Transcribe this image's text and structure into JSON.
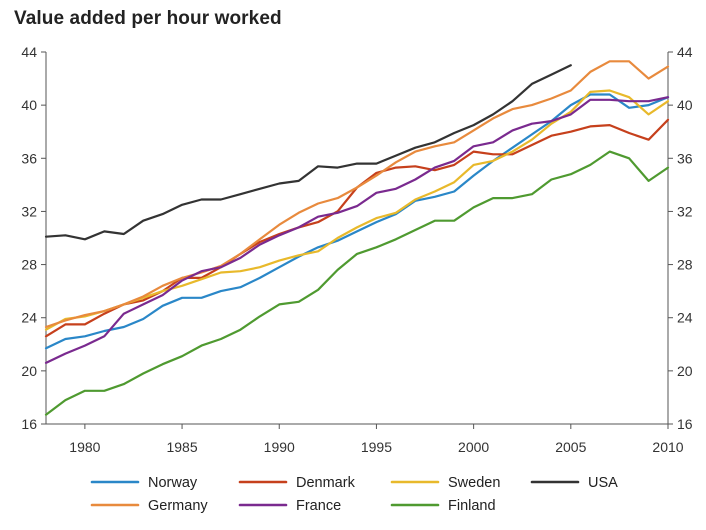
{
  "chart_data": {
    "type": "line",
    "title": "Value added per hour worked",
    "xlabel": "",
    "ylabel": "",
    "xlim": [
      1978,
      2010
    ],
    "ylim": [
      16,
      44
    ],
    "x_ticks": [
      1980,
      1985,
      1990,
      1995,
      2000,
      2005,
      2010
    ],
    "y_ticks": [
      16,
      20,
      24,
      28,
      32,
      36,
      40,
      44
    ],
    "grid": false,
    "legend_placement": "bottom",
    "series": [
      {
        "name": "Norway",
        "color": "#2a87c8",
        "legend_row": 0,
        "legend_col": 0,
        "x": [
          1978,
          1979,
          1980,
          1981,
          1982,
          1983,
          1984,
          1985,
          1986,
          1987,
          1988,
          1989,
          1990,
          1991,
          1992,
          1993,
          1994,
          1995,
          1996,
          1997,
          1998,
          1999,
          2000,
          2001,
          2002,
          2003,
          2004,
          2005,
          2006,
          2007,
          2008,
          2009,
          2010
        ],
        "values": [
          21.7,
          22.4,
          22.6,
          23.0,
          23.3,
          23.9,
          24.9,
          25.5,
          25.5,
          26.0,
          26.3,
          27.0,
          27.8,
          28.6,
          29.3,
          29.8,
          30.5,
          31.2,
          31.8,
          32.8,
          33.1,
          33.5,
          34.7,
          35.8,
          36.8,
          37.8,
          38.8,
          40.0,
          40.8,
          40.8,
          39.8,
          40.0,
          40.6
        ]
      },
      {
        "name": "Denmark",
        "color": "#c6401c",
        "legend_row": 0,
        "legend_col": 1,
        "x": [
          1978,
          1979,
          1980,
          1981,
          1982,
          1983,
          1984,
          1985,
          1986,
          1987,
          1988,
          1989,
          1990,
          1991,
          1992,
          1993,
          1994,
          1995,
          1996,
          1997,
          1998,
          1999,
          2000,
          2001,
          2002,
          2003,
          2004,
          2005,
          2006,
          2007,
          2008,
          2009,
          2010
        ],
        "values": [
          22.6,
          23.5,
          23.5,
          24.3,
          25.0,
          25.3,
          26.0,
          27.0,
          27.0,
          27.8,
          28.8,
          29.7,
          30.3,
          30.8,
          31.2,
          32.0,
          33.8,
          34.9,
          35.3,
          35.4,
          35.1,
          35.5,
          36.5,
          36.3,
          36.3,
          37.0,
          37.7,
          38.0,
          38.4,
          38.5,
          37.9,
          37.4,
          38.9
        ]
      },
      {
        "name": "Sweden",
        "color": "#e8b92b",
        "legend_row": 0,
        "legend_col": 2,
        "x": [
          1978,
          1979,
          1980,
          1981,
          1982,
          1983,
          1984,
          1985,
          1986,
          1987,
          1988,
          1989,
          1990,
          1991,
          1992,
          1993,
          1994,
          1995,
          1996,
          1997,
          1998,
          1999,
          2000,
          2001,
          2002,
          2003,
          2004,
          2005,
          2006,
          2007,
          2008,
          2009,
          2010
        ],
        "values": [
          23.1,
          23.9,
          24.1,
          24.5,
          25.0,
          25.5,
          26.0,
          26.4,
          26.9,
          27.4,
          27.5,
          27.8,
          28.3,
          28.7,
          29.0,
          30.0,
          30.8,
          31.5,
          31.9,
          32.9,
          33.5,
          34.2,
          35.5,
          35.8,
          36.5,
          37.4,
          38.6,
          39.5,
          41.0,
          41.1,
          40.6,
          39.3,
          40.3
        ]
      },
      {
        "name": "USA",
        "color": "#333333",
        "legend_row": 0,
        "legend_col": 3,
        "x": [
          1978,
          1979,
          1980,
          1981,
          1982,
          1983,
          1984,
          1985,
          1986,
          1987,
          1988,
          1989,
          1990,
          1991,
          1992,
          1993,
          1994,
          1995,
          1996,
          1997,
          1998,
          1999,
          2000,
          2001,
          2002,
          2003,
          2004,
          2005
        ],
        "values": [
          30.1,
          30.2,
          29.9,
          30.5,
          30.3,
          31.3,
          31.8,
          32.5,
          32.9,
          32.9,
          33.3,
          33.7,
          34.1,
          34.3,
          35.4,
          35.3,
          35.6,
          35.6,
          36.2,
          36.8,
          37.2,
          37.9,
          38.5,
          39.3,
          40.3,
          41.6,
          42.3,
          43.0
        ]
      },
      {
        "name": "Germany",
        "color": "#e88a3d",
        "legend_row": 1,
        "legend_col": 0,
        "x": [
          1978,
          1979,
          1980,
          1981,
          1982,
          1983,
          1984,
          1985,
          1986,
          1987,
          1988,
          1989,
          1990,
          1991,
          1992,
          1993,
          1994,
          1995,
          1996,
          1997,
          1998,
          1999,
          2000,
          2001,
          2002,
          2003,
          2004,
          2005,
          2006,
          2007,
          2008,
          2009,
          2010
        ],
        "values": [
          23.3,
          23.8,
          24.2,
          24.5,
          25.0,
          25.6,
          26.4,
          27.0,
          27.4,
          27.9,
          28.8,
          29.9,
          31.0,
          31.9,
          32.6,
          33.0,
          33.8,
          34.7,
          35.7,
          36.5,
          36.9,
          37.2,
          38.1,
          39.0,
          39.7,
          40.0,
          40.5,
          41.1,
          42.5,
          43.3,
          43.3,
          42.0,
          42.9
        ]
      },
      {
        "name": "France",
        "color": "#7a2a8f",
        "legend_row": 1,
        "legend_col": 1,
        "x": [
          1978,
          1979,
          1980,
          1981,
          1982,
          1983,
          1984,
          1985,
          1986,
          1987,
          1988,
          1989,
          1990,
          1991,
          1992,
          1993,
          1994,
          1995,
          1996,
          1997,
          1998,
          1999,
          2000,
          2001,
          2002,
          2003,
          2004,
          2005,
          2006,
          2007,
          2008,
          2009,
          2010
        ],
        "values": [
          20.6,
          21.3,
          21.9,
          22.6,
          24.3,
          25.0,
          25.7,
          26.8,
          27.5,
          27.8,
          28.5,
          29.5,
          30.2,
          30.8,
          31.6,
          31.9,
          32.4,
          33.4,
          33.7,
          34.4,
          35.3,
          35.8,
          36.9,
          37.2,
          38.1,
          38.6,
          38.8,
          39.3,
          40.4,
          40.4,
          40.3,
          40.3,
          40.6
        ]
      },
      {
        "name": "Finland",
        "color": "#4f9a30",
        "legend_row": 1,
        "legend_col": 2,
        "x": [
          1978,
          1979,
          1980,
          1981,
          1982,
          1983,
          1984,
          1985,
          1986,
          1987,
          1988,
          1989,
          1990,
          1991,
          1992,
          1993,
          1994,
          1995,
          1996,
          1997,
          1998,
          1999,
          2000,
          2001,
          2002,
          2003,
          2004,
          2005,
          2006,
          2007,
          2008,
          2009,
          2010
        ],
        "values": [
          16.7,
          17.8,
          18.5,
          18.5,
          19.0,
          19.8,
          20.5,
          21.1,
          21.9,
          22.4,
          23.1,
          24.1,
          25.0,
          25.2,
          26.1,
          27.6,
          28.8,
          29.3,
          29.9,
          30.6,
          31.3,
          31.3,
          32.3,
          33.0,
          33.0,
          33.3,
          34.4,
          34.8,
          35.5,
          36.5,
          36.0,
          34.3,
          35.3
        ]
      }
    ]
  }
}
